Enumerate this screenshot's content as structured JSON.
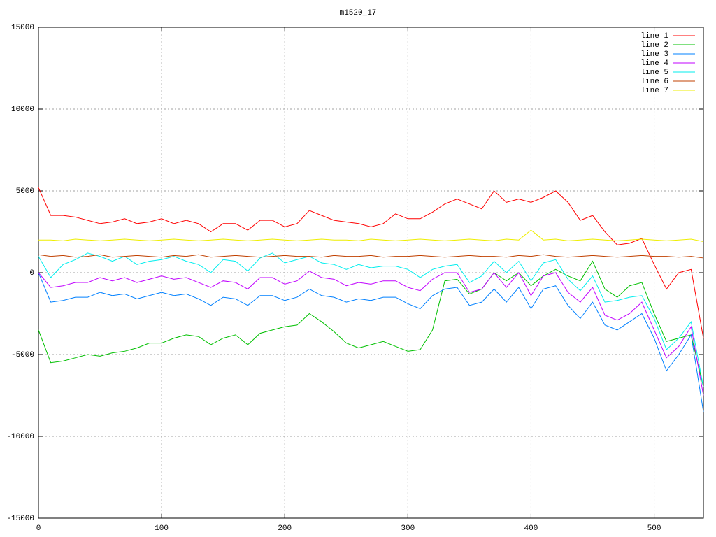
{
  "chart_data": {
    "type": "line",
    "title": "m1520_17",
    "x": [
      0,
      10,
      20,
      30,
      40,
      50,
      60,
      70,
      80,
      90,
      100,
      110,
      120,
      130,
      140,
      150,
      160,
      170,
      180,
      190,
      200,
      210,
      220,
      230,
      240,
      250,
      260,
      270,
      280,
      290,
      300,
      310,
      320,
      330,
      340,
      350,
      360,
      370,
      380,
      390,
      400,
      410,
      420,
      430,
      440,
      450,
      460,
      470,
      480,
      490,
      500,
      510,
      520,
      530,
      540
    ],
    "xlim": [
      0,
      540
    ],
    "xticks": [
      0,
      100,
      200,
      300,
      400,
      500
    ],
    "ylim": [
      -15000,
      15000
    ],
    "yticks": [
      -15000,
      -10000,
      -5000,
      0,
      5000,
      10000,
      15000
    ],
    "grid": true,
    "legend": "top-right",
    "series": [
      {
        "name": "line 1",
        "color": "#ff0000",
        "values": [
          5200,
          3500,
          3500,
          3400,
          3200,
          3000,
          3100,
          3300,
          3000,
          3100,
          3300,
          3000,
          3200,
          3000,
          2500,
          3000,
          3000,
          2600,
          3200,
          3200,
          2800,
          3000,
          3800,
          3500,
          3200,
          3100,
          3000,
          2800,
          3000,
          3600,
          3300,
          3300,
          3700,
          4200,
          4500,
          4200,
          3900,
          5000,
          4300,
          4500,
          4300,
          4600,
          5000,
          4300,
          3200,
          3500,
          2500,
          1700,
          1800,
          2100,
          500,
          -1000,
          0,
          200,
          -4000
        ]
      },
      {
        "name": "line 2",
        "color": "#00c000",
        "values": [
          -3500,
          -5500,
          -5400,
          -5200,
          -5000,
          -5100,
          -4900,
          -4800,
          -4600,
          -4300,
          -4300,
          -4000,
          -3800,
          -3900,
          -4400,
          -4000,
          -3800,
          -4400,
          -3700,
          -3500,
          -3300,
          -3200,
          -2500,
          -3000,
          -3600,
          -4300,
          -4600,
          -4400,
          -4200,
          -4500,
          -4800,
          -4700,
          -3500,
          -500,
          -400,
          -1300,
          -1000,
          0,
          -500,
          0,
          -800,
          -200,
          200,
          -200,
          -500,
          700,
          -1000,
          -1500,
          -800,
          -600,
          -2500,
          -4200,
          -4000,
          -3800,
          -7000
        ]
      },
      {
        "name": "line 3",
        "color": "#0080ff",
        "values": [
          0,
          -1800,
          -1700,
          -1500,
          -1500,
          -1200,
          -1400,
          -1300,
          -1600,
          -1400,
          -1200,
          -1400,
          -1300,
          -1600,
          -2000,
          -1500,
          -1600,
          -2000,
          -1400,
          -1400,
          -1700,
          -1500,
          -1000,
          -1400,
          -1500,
          -1800,
          -1600,
          -1700,
          -1500,
          -1500,
          -1900,
          -2200,
          -1400,
          -1000,
          -900,
          -2000,
          -1800,
          -1000,
          -1800,
          -900,
          -2200,
          -1000,
          -800,
          -2000,
          -2800,
          -1800,
          -3200,
          -3500,
          -3000,
          -2500,
          -4000,
          -6000,
          -5000,
          -3800,
          -8500
        ]
      },
      {
        "name": "line 4",
        "color": "#c000ff",
        "values": [
          0,
          -900,
          -800,
          -600,
          -600,
          -300,
          -500,
          -300,
          -600,
          -400,
          -200,
          -400,
          -300,
          -600,
          -900,
          -500,
          -600,
          -1000,
          -300,
          -300,
          -700,
          -500,
          100,
          -300,
          -400,
          -800,
          -600,
          -700,
          -500,
          -500,
          -900,
          -1100,
          -400,
          0,
          0,
          -1200,
          -1000,
          0,
          -900,
          0,
          -1400,
          -200,
          0,
          -1200,
          -1800,
          -900,
          -2600,
          -2900,
          -2500,
          -1800,
          -3500,
          -5200,
          -4500,
          -3300,
          -7500
        ]
      },
      {
        "name": "line 5",
        "color": "#00eeee",
        "values": [
          1000,
          -300,
          500,
          800,
          1200,
          1000,
          700,
          1000,
          500,
          700,
          800,
          1000,
          700,
          500,
          0,
          800,
          700,
          100,
          900,
          1200,
          600,
          800,
          1000,
          600,
          500,
          200,
          500,
          300,
          400,
          400,
          200,
          -300,
          200,
          400,
          500,
          -600,
          -200,
          700,
          0,
          700,
          -500,
          600,
          800,
          -400,
          -1100,
          -200,
          -1800,
          -1700,
          -1500,
          -1400,
          -2800,
          -4700,
          -4000,
          -3000,
          -7000
        ]
      },
      {
        "name": "line 6",
        "color": "#c04000",
        "values": [
          1100,
          1000,
          1050,
          950,
          1000,
          1100,
          950,
          1000,
          1050,
          1000,
          950,
          1050,
          1000,
          1100,
          950,
          1000,
          1050,
          1000,
          950,
          1000,
          1050,
          1000,
          1000,
          950,
          1050,
          1000,
          1000,
          1050,
          950,
          1000,
          1000,
          1050,
          1000,
          950,
          1000,
          1050,
          1000,
          1000,
          950,
          1050,
          1000,
          1100,
          1000,
          950,
          1000,
          1050,
          1000,
          950,
          1000,
          1050,
          1000,
          1000,
          950,
          1000,
          900
        ]
      },
      {
        "name": "line 7",
        "color": "#eeee00",
        "values": [
          2000,
          2000,
          1950,
          2050,
          2000,
          1950,
          2000,
          2050,
          2000,
          1950,
          2000,
          2050,
          2000,
          1950,
          2000,
          2050,
          2000,
          1950,
          2000,
          2050,
          2000,
          1950,
          2000,
          2050,
          2000,
          2000,
          1950,
          2050,
          2000,
          1950,
          2000,
          2050,
          2000,
          1950,
          2000,
          2050,
          2000,
          1950,
          2050,
          2000,
          2600,
          2000,
          2050,
          1950,
          2000,
          2050,
          2000,
          1950,
          2000,
          2050,
          2000,
          1950,
          2000,
          2050,
          1900
        ]
      }
    ]
  }
}
